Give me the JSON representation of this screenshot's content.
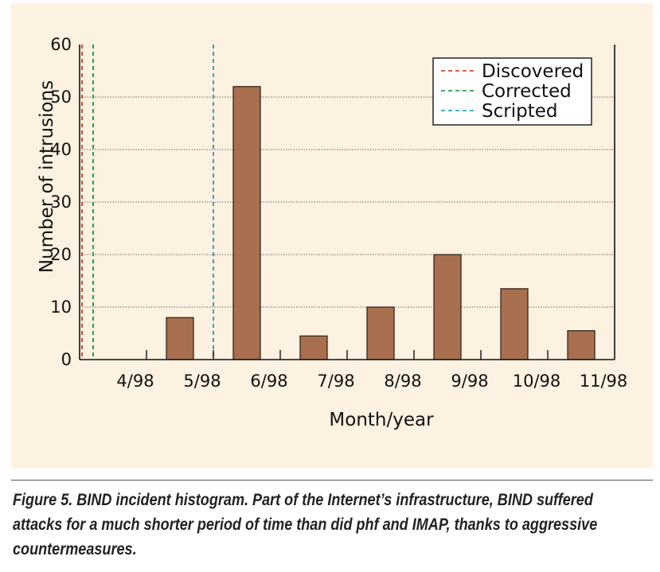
{
  "chart_data": {
    "type": "bar",
    "title": "",
    "xlabel": "Month/year",
    "ylabel": "Number of intrusions",
    "ylim": [
      0,
      60
    ],
    "yticks": [
      0,
      10,
      20,
      30,
      40,
      50,
      60
    ],
    "grid": "horizontal dotted",
    "categories": [
      "4/98",
      "5/98",
      "6/98",
      "7/98",
      "8/98",
      "9/98",
      "10/98",
      "11/98"
    ],
    "values": [
      0,
      8,
      52,
      4.5,
      10,
      20,
      13.5,
      5.5
    ],
    "bar_color": "#a8704f",
    "events": [
      {
        "name": "Discovered",
        "color": "#e0452e",
        "x_position": "start of 4/98"
      },
      {
        "name": "Corrected",
        "color": "#2f9a4a",
        "x_position": "start of 4/98"
      },
      {
        "name": "Scripted",
        "color": "#2aa6c9",
        "x_position": "boundary between 5/98 and 6/98"
      }
    ],
    "legend_placement": "top-right"
  },
  "caption": "Figure 5. BIND incident histogram. Part of the Internet’s infrastructure, BIND suffered attacks for a much shorter period of time than did phf and IMAP, thanks to aggressive countermeasures."
}
